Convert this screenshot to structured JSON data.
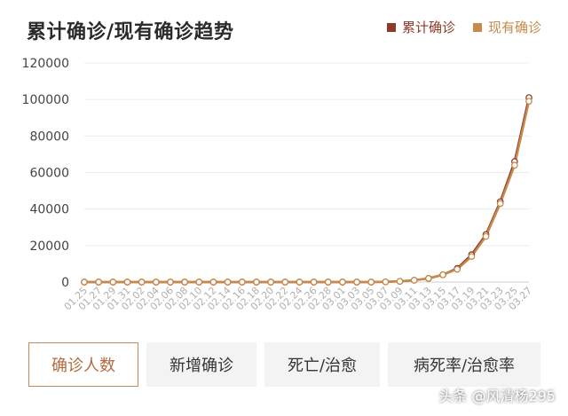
{
  "title": "累计确诊/现有确诊趋势",
  "legend": [
    {
      "label": "累计确诊",
      "color": "#8b3a2b"
    },
    {
      "label": "现有确诊",
      "color": "#c68a4a"
    }
  ],
  "tabs": [
    {
      "label": "确诊人数",
      "active": true
    },
    {
      "label": "新增确诊",
      "active": false
    },
    {
      "label": "死亡/治愈",
      "active": false
    },
    {
      "label": "病死率/治愈率",
      "active": false
    }
  ],
  "watermark": "头条 @风清杨295",
  "chart_data": {
    "type": "line",
    "title": "累计确诊/现有确诊趋势",
    "xlabel": "",
    "ylabel": "",
    "ylim": [
      0,
      120000
    ],
    "yticks": [
      0,
      20000,
      40000,
      60000,
      80000,
      100000,
      120000
    ],
    "grid": true,
    "legend_position": "top-right",
    "x": [
      "01.25",
      "01.27",
      "01.29",
      "01.31",
      "02.02",
      "02.04",
      "02.06",
      "02.08",
      "02.10",
      "02.12",
      "02.14",
      "02.16",
      "02.18",
      "02.20",
      "02.22",
      "02.24",
      "02.26",
      "02.28",
      "03.01",
      "03.03",
      "03.05",
      "03.07",
      "03.09",
      "03.11",
      "03.13",
      "03.15",
      "03.17",
      "03.19",
      "03.21",
      "03.23",
      "03.25",
      "03.27"
    ],
    "series": [
      {
        "name": "累计确诊",
        "color": "#8b3a2b",
        "values": [
          0,
          0,
          0,
          0,
          0,
          0,
          0,
          0,
          0,
          0,
          0,
          0,
          0,
          0,
          0,
          0,
          0,
          0,
          0,
          0,
          0,
          100,
          400,
          1000,
          2000,
          4000,
          7500,
          15000,
          26000,
          44000,
          66000,
          101000
        ]
      },
      {
        "name": "现有确诊",
        "color": "#c68a4a",
        "values": [
          0,
          0,
          0,
          0,
          0,
          0,
          0,
          0,
          0,
          0,
          0,
          0,
          0,
          0,
          0,
          0,
          0,
          0,
          0,
          0,
          0,
          100,
          400,
          1000,
          2000,
          4000,
          7000,
          14000,
          25000,
          43000,
          64000,
          99000
        ]
      }
    ]
  }
}
